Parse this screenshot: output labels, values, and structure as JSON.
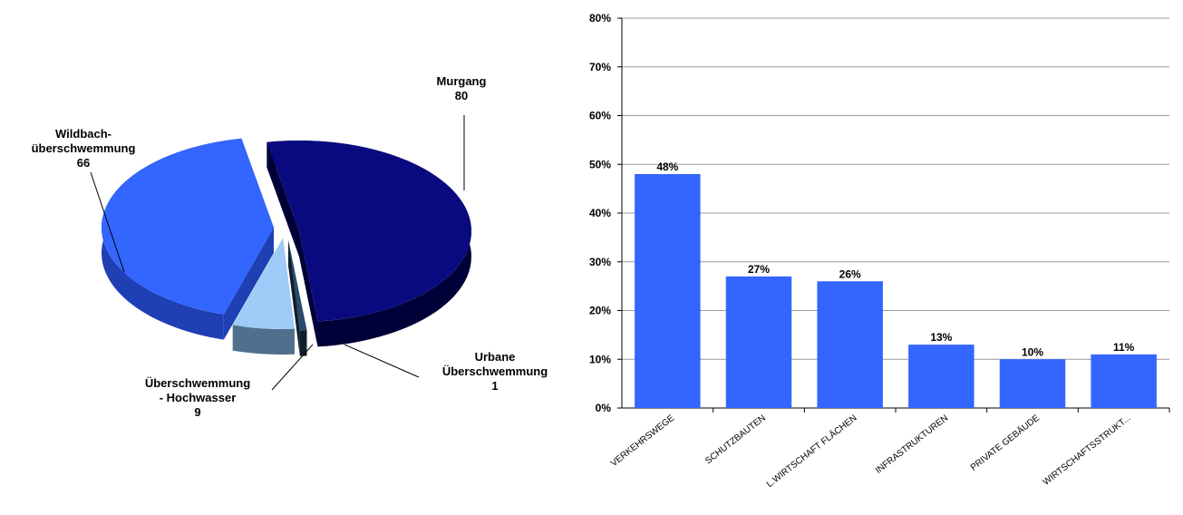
{
  "chart_data": [
    {
      "type": "pie",
      "title": "",
      "slices": [
        {
          "label": "Murgang",
          "value": 80,
          "color": "#0a0a80",
          "side": "#000038"
        },
        {
          "label": "Urbane Überschwemmung",
          "value": 1,
          "color": "#2a4a6a",
          "side": "#0e1e2e"
        },
        {
          "label": "Überschwemmung - Hochwasser",
          "value": 9,
          "color": "#9ecbf8",
          "side": "#4f6f8c"
        },
        {
          "label": "Wildbach-überschwemmung",
          "value": 66,
          "color": "#3366ff",
          "side": "#1f3fb5"
        }
      ],
      "labels": [
        {
          "lines": [
            "Murgang",
            "80"
          ]
        },
        {
          "lines": [
            "Urbane",
            "Überschwemmung",
            "1"
          ]
        },
        {
          "lines": [
            "Überschwemmung",
            "- Hochwasser",
            "9"
          ]
        },
        {
          "lines": [
            "Wildbach-",
            "überschwemmung",
            "66"
          ]
        }
      ]
    },
    {
      "type": "bar",
      "title": "",
      "xlabel": "",
      "ylabel": "",
      "categories": [
        "VERKEHRSWEGE",
        "SCHUTZBAUTEN",
        "L.WIRTSCHAFT FLÄCHEN",
        "INFRASTRUKTUREN",
        "PRIVATE GEBÄUDE",
        "WIRTSCHAFTSSTRUKT..."
      ],
      "values": [
        48,
        27,
        26,
        13,
        10,
        11
      ],
      "data_labels": [
        "48%",
        "27%",
        "26%",
        "13%",
        "10%",
        "11%"
      ],
      "ylim": [
        0,
        80
      ],
      "yticks": [
        "0%",
        "10%",
        "20%",
        "30%",
        "40%",
        "50%",
        "60%",
        "70%",
        "80%"
      ],
      "grid": true,
      "bar_color": "#3366ff"
    }
  ]
}
